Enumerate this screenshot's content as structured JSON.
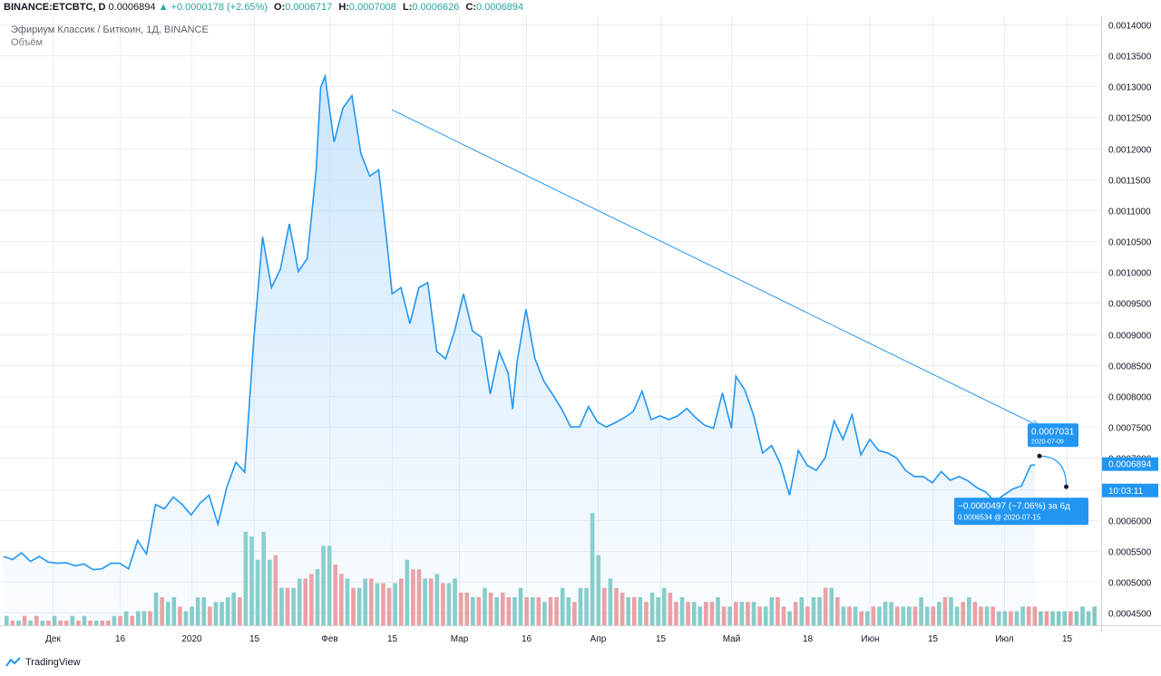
{
  "header": {
    "symbol": "BINANCE:ETCBTC, D",
    "last": "0.0006894",
    "arrow": "▲",
    "change": "+0.0000178 (+2.65%)",
    "o_label": "O:",
    "o": "0.0006717",
    "h_label": "H:",
    "h": "0.0007008",
    "l_label": "L:",
    "l": "0.0006626",
    "c_label": "C:",
    "c": "0.0006894"
  },
  "legend": {
    "title": "Эфириум Классик / Биткоин, 1Д, BINANCE",
    "volume": "Объём"
  },
  "footer": {
    "brand": "TradingView"
  },
  "colors": {
    "line": "#2196f3",
    "area": "#bbdefb",
    "vol_up": "#80cbc4",
    "vol_down": "#ef9a9a",
    "trend": "#2196f3",
    "label_bg": "#2196f3",
    "price_tag": "#2196f3",
    "grid": "#ebedf1"
  },
  "chart_data": {
    "type": "area",
    "x_axis": {
      "start": "2019-11-20",
      "end": "2020-07-22",
      "ticks": [
        {
          "date": "2019-12-01",
          "label": "Дек"
        },
        {
          "date": "2019-12-16",
          "label": "16"
        },
        {
          "date": "2020-01-01",
          "label": "2020"
        },
        {
          "date": "2020-01-15",
          "label": "15"
        },
        {
          "date": "2020-02-01",
          "label": "Фев"
        },
        {
          "date": "2020-02-15",
          "label": "15"
        },
        {
          "date": "2020-03-01",
          "label": "Мар"
        },
        {
          "date": "2020-03-16",
          "label": "16"
        },
        {
          "date": "2020-04-01",
          "label": "Апр"
        },
        {
          "date": "2020-04-15",
          "label": "15"
        },
        {
          "date": "2020-05-01",
          "label": "Май"
        },
        {
          "date": "2020-05-18",
          "label": "18"
        },
        {
          "date": "2020-06-01",
          "label": "Июн"
        },
        {
          "date": "2020-06-15",
          "label": "15"
        },
        {
          "date": "2020-07-01",
          "label": "Июл"
        },
        {
          "date": "2020-07-15",
          "label": "15"
        }
      ]
    },
    "y_axis": {
      "min": 0.00043,
      "max": 0.00141,
      "ticks": [
        "0.0004500",
        "0.0005000",
        "0.0005500",
        "0.0006000",
        "0.0006500",
        "0.0007000",
        "0.0007500",
        "0.0008000",
        "0.0008500",
        "0.0009000",
        "0.0009500",
        "0.0010000",
        "0.0010500",
        "0.0011000",
        "0.0011500",
        "0.0012000",
        "0.0012500",
        "0.0013000",
        "0.0013500",
        "0.0014000"
      ]
    },
    "series": [
      {
        "points": [
          [
            "2019-11-20",
            0.000541
          ],
          [
            "2019-11-22",
            0.000536
          ],
          [
            "2019-11-24",
            0.000547
          ],
          [
            "2019-11-26",
            0.000533
          ],
          [
            "2019-11-28",
            0.000541
          ],
          [
            "2019-11-30",
            0.000532
          ],
          [
            "2019-12-02",
            0.00053
          ],
          [
            "2019-12-04",
            0.000531
          ],
          [
            "2019-12-06",
            0.000526
          ],
          [
            "2019-12-08",
            0.000529
          ],
          [
            "2019-12-10",
            0.00052
          ],
          [
            "2019-12-12",
            0.000521
          ],
          [
            "2019-12-14",
            0.00053
          ],
          [
            "2019-12-16",
            0.00053
          ],
          [
            "2019-12-18",
            0.000521
          ],
          [
            "2019-12-20",
            0.000567
          ],
          [
            "2019-12-22",
            0.000545
          ],
          [
            "2019-12-24",
            0.000625
          ],
          [
            "2019-12-26",
            0.000618
          ],
          [
            "2019-12-28",
            0.000637
          ],
          [
            "2019-12-30",
            0.000625
          ],
          [
            "2020-01-01",
            0.000608
          ],
          [
            "2020-01-03",
            0.000627
          ],
          [
            "2020-01-05",
            0.00064
          ],
          [
            "2020-01-07",
            0.000593
          ],
          [
            "2020-01-09",
            0.000653
          ],
          [
            "2020-01-11",
            0.000693
          ],
          [
            "2020-01-13",
            0.000677
          ],
          [
            "2020-01-15",
            0.00089
          ],
          [
            "2020-01-17",
            0.001057
          ],
          [
            "2020-01-19",
            0.000975
          ],
          [
            "2020-01-21",
            0.001005
          ],
          [
            "2020-01-23",
            0.001078
          ],
          [
            "2020-01-25",
            0.001001
          ],
          [
            "2020-01-27",
            0.001022
          ],
          [
            "2020-01-29",
            0.001165
          ],
          [
            "2020-01-30",
            0.001298
          ],
          [
            "2020-01-31",
            0.001316
          ],
          [
            "2020-02-02",
            0.00121
          ],
          [
            "2020-02-04",
            0.001265
          ],
          [
            "2020-02-06",
            0.001285
          ],
          [
            "2020-02-08",
            0.001192
          ],
          [
            "2020-02-10",
            0.001155
          ],
          [
            "2020-02-12",
            0.001165
          ],
          [
            "2020-02-14",
            0.001038
          ],
          [
            "2020-02-15",
            0.000965
          ],
          [
            "2020-02-17",
            0.000975
          ],
          [
            "2020-02-19",
            0.000917
          ],
          [
            "2020-02-21",
            0.000975
          ],
          [
            "2020-02-23",
            0.000983
          ],
          [
            "2020-02-25",
            0.000872
          ],
          [
            "2020-02-27",
            0.00086
          ],
          [
            "2020-02-29",
            0.000905
          ],
          [
            "2020-03-02",
            0.000965
          ],
          [
            "2020-03-04",
            0.000905
          ],
          [
            "2020-03-06",
            0.000895
          ],
          [
            "2020-03-08",
            0.000803
          ],
          [
            "2020-03-10",
            0.000872
          ],
          [
            "2020-03-12",
            0.000837
          ],
          [
            "2020-03-13",
            0.000779
          ],
          [
            "2020-03-14",
            0.000855
          ],
          [
            "2020-03-16",
            0.00094
          ],
          [
            "2020-03-18",
            0.00086
          ],
          [
            "2020-03-20",
            0.000824
          ],
          [
            "2020-03-22",
            0.000802
          ],
          [
            "2020-03-24",
            0.000779
          ],
          [
            "2020-03-26",
            0.00075
          ],
          [
            "2020-03-28",
            0.00075
          ],
          [
            "2020-03-30",
            0.000783
          ],
          [
            "2020-04-01",
            0.000758
          ],
          [
            "2020-04-03",
            0.00075
          ],
          [
            "2020-04-05",
            0.000757
          ],
          [
            "2020-04-07",
            0.000765
          ],
          [
            "2020-04-09",
            0.000775
          ],
          [
            "2020-04-11",
            0.000808
          ],
          [
            "2020-04-13",
            0.000762
          ],
          [
            "2020-04-15",
            0.000768
          ],
          [
            "2020-04-17",
            0.000762
          ],
          [
            "2020-04-19",
            0.000768
          ],
          [
            "2020-04-21",
            0.00078
          ],
          [
            "2020-04-23",
            0.000765
          ],
          [
            "2020-04-25",
            0.000753
          ],
          [
            "2020-04-27",
            0.000748
          ],
          [
            "2020-04-29",
            0.000805
          ],
          [
            "2020-05-01",
            0.000748
          ],
          [
            "2020-05-02",
            0.000832
          ],
          [
            "2020-05-04",
            0.00081
          ],
          [
            "2020-05-06",
            0.000768
          ],
          [
            "2020-05-08",
            0.000708
          ],
          [
            "2020-05-10",
            0.00072
          ],
          [
            "2020-05-12",
            0.00069
          ],
          [
            "2020-05-14",
            0.00064
          ],
          [
            "2020-05-16",
            0.000712
          ],
          [
            "2020-05-18",
            0.000688
          ],
          [
            "2020-05-20",
            0.00068
          ],
          [
            "2020-05-22",
            0.0007
          ],
          [
            "2020-05-24",
            0.00076
          ],
          [
            "2020-05-26",
            0.00073
          ],
          [
            "2020-05-28",
            0.00077
          ],
          [
            "2020-05-30",
            0.000705
          ],
          [
            "2020-06-01",
            0.00073
          ],
          [
            "2020-06-03",
            0.000712
          ],
          [
            "2020-06-05",
            0.000708
          ],
          [
            "2020-06-07",
            0.0007
          ],
          [
            "2020-06-09",
            0.00068
          ],
          [
            "2020-06-11",
            0.00067
          ],
          [
            "2020-06-13",
            0.00067
          ],
          [
            "2020-06-15",
            0.00066
          ],
          [
            "2020-06-17",
            0.000678
          ],
          [
            "2020-06-19",
            0.000664
          ],
          [
            "2020-06-21",
            0.00067
          ],
          [
            "2020-06-23",
            0.000663
          ],
          [
            "2020-06-25",
            0.000652
          ],
          [
            "2020-06-27",
            0.000645
          ],
          [
            "2020-06-29",
            0.00063
          ],
          [
            "2020-07-01",
            0.00064
          ],
          [
            "2020-07-03",
            0.00065
          ],
          [
            "2020-07-05",
            0.000655
          ],
          [
            "2020-07-07",
            0.000688
          ],
          [
            "2020-07-08",
            0.000689
          ]
        ]
      }
    ],
    "volume": {
      "ylim": [
        0,
        32
      ],
      "values": [
        2,
        1,
        1,
        2,
        1,
        2,
        1,
        1,
        2,
        1,
        1,
        2,
        1,
        2,
        1,
        1,
        1,
        1,
        2,
        2,
        3,
        2,
        3,
        3,
        3,
        7,
        6,
        5,
        6,
        4,
        3,
        4,
        6,
        6,
        4,
        5,
        5,
        6,
        7,
        6,
        20,
        19,
        14,
        20,
        14,
        15,
        8,
        8,
        8,
        10,
        10,
        11,
        12,
        17,
        17,
        13,
        11,
        10,
        8,
        8,
        10,
        10,
        9,
        9,
        8,
        9,
        10,
        14,
        12,
        12,
        10,
        10,
        11,
        9,
        9,
        10,
        7,
        7,
        6,
        6,
        8,
        7,
        6,
        7,
        6,
        6,
        8,
        6,
        6,
        6,
        5,
        6,
        6,
        8,
        6,
        5,
        8,
        8,
        24,
        15,
        8,
        10,
        8,
        7,
        6,
        6,
        6,
        5,
        7,
        6,
        8,
        7,
        5,
        6,
        5,
        5,
        4,
        5,
        5,
        6,
        4,
        4,
        5,
        5,
        5,
        5,
        4,
        4,
        6,
        6,
        4,
        3,
        5,
        6,
        4,
        6,
        6,
        8,
        8,
        6,
        4,
        4,
        4,
        3,
        3,
        4,
        4,
        5,
        5,
        4,
        4,
        4,
        4,
        6,
        4,
        4,
        5,
        6,
        6,
        4,
        5,
        6,
        5,
        4,
        4,
        4,
        3,
        3,
        3,
        3,
        4,
        4,
        4,
        3,
        3,
        3,
        3,
        3,
        3,
        3,
        4,
        3,
        4
      ],
      "up": [
        1,
        0,
        1,
        0,
        1,
        0,
        1,
        0,
        1,
        0,
        0,
        1,
        0,
        1,
        0,
        1,
        0,
        0,
        1,
        0,
        1,
        0,
        1,
        1,
        0,
        1,
        0,
        1,
        1,
        0,
        1,
        1,
        1,
        1,
        0,
        1,
        1,
        1,
        1,
        0,
        1,
        1,
        1,
        1,
        1,
        0,
        1,
        0,
        1,
        1,
        0,
        0,
        1,
        1,
        1,
        0,
        0,
        1,
        0,
        1,
        1,
        0,
        1,
        0,
        0,
        1,
        0,
        1,
        0,
        0,
        1,
        0,
        1,
        0,
        1,
        1,
        0,
        0,
        1,
        0,
        1,
        0,
        1,
        0,
        0,
        1,
        1,
        0,
        1,
        0,
        1,
        0,
        0,
        1,
        1,
        0,
        1,
        1,
        1,
        1,
        0,
        1,
        0,
        0,
        1,
        0,
        1,
        0,
        1,
        1,
        1,
        0,
        0,
        1,
        0,
        1,
        1,
        0,
        0,
        1,
        0,
        1,
        0,
        1,
        0,
        1,
        0,
        1,
        1,
        0,
        0,
        1,
        0,
        1,
        0,
        1,
        1,
        0,
        1,
        0,
        1,
        0,
        1,
        0,
        1,
        0,
        1,
        1,
        1,
        0,
        1,
        1,
        0,
        1,
        1,
        0,
        1,
        0,
        1,
        1,
        0,
        1,
        0,
        0,
        1,
        0,
        1,
        1,
        0,
        1,
        1,
        0,
        0,
        1,
        0,
        1,
        1,
        1,
        0,
        1,
        1,
        1,
        1
      ]
    },
    "trendline": {
      "from": {
        "date": "2020-02-15",
        "price": 0.001262
      },
      "to": {
        "date": "2020-07-09",
        "price": 0.000751
      }
    },
    "projection": {
      "from": {
        "date": "2020-07-09",
        "price": 0.0007031
      },
      "to": {
        "date": "2020-07-15",
        "price": 0.0006534
      },
      "label_top": "0.0007031",
      "label_top_date": "2020-07-09",
      "label_main": "−0.0000497 (−7.06%) за 6д",
      "label_sub": "0.0006534 @ 2020-07-15"
    },
    "price_tags": [
      {
        "price": 0.0006894,
        "label": "0.0006894"
      },
      {
        "price": 0.00066,
        "label": "10:03:11"
      }
    ]
  }
}
